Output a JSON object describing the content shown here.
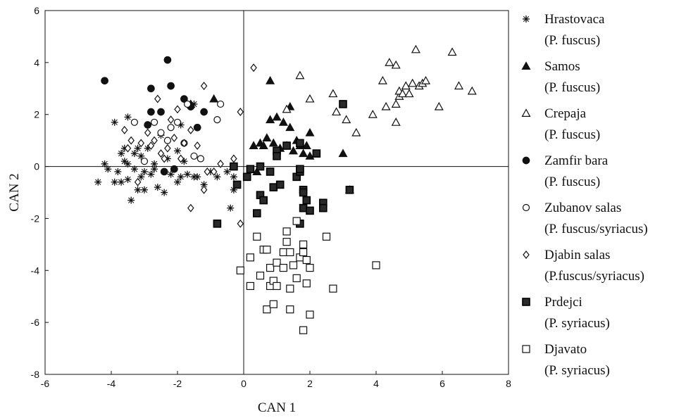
{
  "chart_data": {
    "type": "scatter",
    "title": "",
    "xlabel": "CAN 1",
    "ylabel": "CAN 2",
    "xlim": [
      -6,
      8
    ],
    "ylim": [
      -8,
      6
    ],
    "xticks": [
      -6,
      -4,
      -2,
      0,
      2,
      4,
      6,
      8
    ],
    "yticks": [
      -8,
      -6,
      -4,
      -2,
      0,
      2,
      4,
      6
    ],
    "xtick_labels": [
      "-6",
      "-4",
      "-2",
      "0",
      "2",
      "4",
      "6",
      "8"
    ],
    "ytick_labels": [
      "-8",
      "-6",
      "-4",
      "-2",
      "0",
      "2",
      "4",
      "6"
    ],
    "reference_lines": {
      "x": 0,
      "y": 0
    },
    "grid": false,
    "legend_position": "right",
    "series": [
      {
        "name": "Hrastovaca",
        "species": "(P. fuscus)",
        "marker": "asterisk",
        "color": "#111111",
        "points": [
          [
            -4.4,
            -0.6
          ],
          [
            -4.2,
            0.1
          ],
          [
            -4.1,
            -0.1
          ],
          [
            -3.9,
            1.7
          ],
          [
            -3.9,
            -0.6
          ],
          [
            -3.8,
            -0.2
          ],
          [
            -3.7,
            0.5
          ],
          [
            -3.7,
            -0.6
          ],
          [
            -3.6,
            0.7
          ],
          [
            -3.6,
            0.2
          ],
          [
            -3.5,
            1.9
          ],
          [
            -3.5,
            -0.5
          ],
          [
            -3.5,
            0.1
          ],
          [
            -3.4,
            -1.3
          ],
          [
            -3.3,
            0.5
          ],
          [
            -3.3,
            -0.1
          ],
          [
            -3.2,
            0.7
          ],
          [
            -3.2,
            -0.9
          ],
          [
            -3.1,
            0.4
          ],
          [
            -3.1,
            -0.4
          ],
          [
            -3.0,
            -0.2
          ],
          [
            -3.0,
            -0.9
          ],
          [
            -2.9,
            0.7
          ],
          [
            -2.8,
            -0.3
          ],
          [
            -2.7,
            0.1
          ],
          [
            -2.7,
            -0.1
          ],
          [
            -2.6,
            -0.8
          ],
          [
            -2.5,
            1.2
          ],
          [
            -2.4,
            -1.0
          ],
          [
            -2.3,
            0.3
          ],
          [
            -2.2,
            -0.3
          ],
          [
            -2.0,
            0.6
          ],
          [
            -2.0,
            -0.6
          ],
          [
            -1.9,
            1.6
          ],
          [
            -1.9,
            -0.4
          ],
          [
            -1.8,
            0.2
          ],
          [
            -1.7,
            -0.3
          ],
          [
            -1.5,
            -0.4
          ],
          [
            -1.5,
            2.4
          ],
          [
            -1.4,
            -0.4
          ],
          [
            -1.2,
            -0.7
          ],
          [
            -1.0,
            -0.2
          ],
          [
            -0.8,
            -0.4
          ],
          [
            -0.5,
            -0.2
          ],
          [
            -0.4,
            -1.6
          ],
          [
            -0.3,
            -0.4
          ],
          [
            -0.3,
            -0.9
          ]
        ]
      },
      {
        "name": "Samos",
        "species": "(P. fuscus)",
        "marker": "triangle-filled",
        "color": "#111111",
        "points": [
          [
            0.3,
            0.8
          ],
          [
            0.4,
            -0.2
          ],
          [
            0.5,
            0.9
          ],
          [
            0.6,
            0.8
          ],
          [
            0.7,
            1.1
          ],
          [
            0.8,
            1.8
          ],
          [
            0.8,
            3.3
          ],
          [
            0.9,
            0.9
          ],
          [
            1.0,
            1.9
          ],
          [
            1.1,
            0.7
          ],
          [
            1.2,
            1.7
          ],
          [
            1.3,
            0.8
          ],
          [
            1.4,
            1.5
          ],
          [
            1.4,
            2.3
          ],
          [
            1.5,
            0.6
          ],
          [
            1.6,
            1.0
          ],
          [
            1.7,
            0.8
          ],
          [
            1.8,
            0.5
          ],
          [
            1.9,
            0.8
          ],
          [
            2.0,
            1.3
          ],
          [
            2.0,
            0.4
          ],
          [
            3.0,
            0.5
          ],
          [
            3.2,
            -0.9
          ],
          [
            -0.9,
            2.6
          ],
          [
            -1.6,
            2.4
          ]
        ]
      },
      {
        "name": "Crepaja",
        "species": "(P. fuscus)",
        "marker": "triangle-open",
        "color": "#111111",
        "points": [
          [
            1.7,
            3.5
          ],
          [
            2.0,
            2.6
          ],
          [
            2.7,
            2.8
          ],
          [
            2.8,
            2.1
          ],
          [
            3.1,
            1.8
          ],
          [
            3.4,
            1.3
          ],
          [
            3.9,
            2.0
          ],
          [
            4.2,
            3.3
          ],
          [
            4.3,
            2.3
          ],
          [
            4.4,
            4.0
          ],
          [
            4.6,
            2.4
          ],
          [
            4.6,
            3.9
          ],
          [
            4.7,
            2.7
          ],
          [
            4.7,
            2.9
          ],
          [
            4.8,
            2.8
          ],
          [
            4.9,
            3.1
          ],
          [
            5.0,
            2.8
          ],
          [
            5.1,
            3.2
          ],
          [
            5.2,
            4.5
          ],
          [
            5.3,
            3.1
          ],
          [
            5.4,
            3.2
          ],
          [
            5.5,
            3.3
          ],
          [
            5.9,
            2.3
          ],
          [
            6.3,
            4.4
          ],
          [
            6.5,
            3.1
          ],
          [
            6.9,
            2.9
          ],
          [
            4.6,
            1.7
          ],
          [
            1.3,
            2.2
          ]
        ]
      },
      {
        "name": "Zamfir bara",
        "species": "(P. fuscus)",
        "marker": "circle-filled",
        "color": "#111111",
        "points": [
          [
            -4.2,
            3.3
          ],
          [
            -2.9,
            1.6
          ],
          [
            -2.8,
            3.0
          ],
          [
            -2.8,
            2.1
          ],
          [
            -2.5,
            2.1
          ],
          [
            -2.4,
            -0.2
          ],
          [
            -2.3,
            4.1
          ],
          [
            -2.2,
            3.1
          ],
          [
            -2.1,
            -0.1
          ],
          [
            -1.8,
            2.6
          ],
          [
            -1.6,
            2.3
          ],
          [
            -1.4,
            1.5
          ],
          [
            -1.2,
            2.1
          ]
        ]
      },
      {
        "name": "Zubanov salas",
        "species": "(P. fuscus/syriacus)",
        "marker": "circle-open",
        "color": "#111111",
        "points": [
          [
            -3.3,
            1.7
          ],
          [
            -3.0,
            0.2
          ],
          [
            -2.7,
            1.7
          ],
          [
            -2.5,
            1.3
          ],
          [
            -2.3,
            1.0
          ],
          [
            -2.2,
            1.5
          ],
          [
            -2.0,
            1.7
          ],
          [
            -1.8,
            0.9
          ],
          [
            -1.7,
            2.4
          ],
          [
            -1.5,
            0.4
          ],
          [
            -1.3,
            0.3
          ],
          [
            -0.7,
            2.4
          ],
          [
            -0.8,
            1.8
          ]
        ]
      },
      {
        "name": "Djabin salas",
        "species": "(P.fuscus/syriacus)",
        "marker": "diamond-open",
        "color": "#111111",
        "points": [
          [
            -3.6,
            1.4
          ],
          [
            -3.5,
            0.7
          ],
          [
            -3.4,
            1.0
          ],
          [
            -3.2,
            -0.6
          ],
          [
            -3.1,
            0.9
          ],
          [
            -2.9,
            1.3
          ],
          [
            -2.8,
            0.8
          ],
          [
            -2.7,
            1.0
          ],
          [
            -2.6,
            2.6
          ],
          [
            -2.5,
            0.5
          ],
          [
            -2.4,
            0.3
          ],
          [
            -2.3,
            0.7
          ],
          [
            -2.2,
            1.8
          ],
          [
            -2.1,
            1.1
          ],
          [
            -2.0,
            2.2
          ],
          [
            -1.9,
            0.3
          ],
          [
            -1.8,
            0.9
          ],
          [
            -1.6,
            1.4
          ],
          [
            -1.6,
            -1.6
          ],
          [
            -1.4,
            0.8
          ],
          [
            -1.2,
            3.1
          ],
          [
            -1.1,
            -0.2
          ],
          [
            -0.9,
            -0.2
          ],
          [
            -0.7,
            0.1
          ],
          [
            -0.3,
            0.3
          ],
          [
            -0.1,
            2.1
          ],
          [
            -0.1,
            -2.2
          ],
          [
            0.3,
            3.8
          ],
          [
            -1.2,
            -0.9
          ]
        ]
      },
      {
        "name": "Prdejci",
        "species": "(P. syriacus)",
        "marker": "square-filled",
        "color": "#111111",
        "points": [
          [
            -0.8,
            -2.2
          ],
          [
            -0.3,
            0.0
          ],
          [
            -0.2,
            -0.7
          ],
          [
            0.2,
            -0.1
          ],
          [
            0.4,
            -1.8
          ],
          [
            0.5,
            0.0
          ],
          [
            0.5,
            -1.1
          ],
          [
            0.6,
            -1.3
          ],
          [
            0.8,
            -0.2
          ],
          [
            0.9,
            -0.8
          ],
          [
            1.0,
            0.6
          ],
          [
            1.0,
            0.4
          ],
          [
            1.1,
            -0.7
          ],
          [
            1.3,
            0.8
          ],
          [
            1.6,
            -0.4
          ],
          [
            1.7,
            -0.2
          ],
          [
            1.7,
            -0.1
          ],
          [
            1.8,
            -0.9
          ],
          [
            1.8,
            -1.0
          ],
          [
            1.8,
            -1.6
          ],
          [
            1.9,
            -1.3
          ],
          [
            2.0,
            -1.7
          ],
          [
            2.2,
            0.5
          ],
          [
            2.4,
            -1.4
          ],
          [
            2.4,
            -1.6
          ],
          [
            3.0,
            2.4
          ],
          [
            3.2,
            -0.9
          ],
          [
            1.7,
            -2.2
          ],
          [
            1.7,
            0.9
          ],
          [
            0.1,
            -0.4
          ]
        ]
      },
      {
        "name": "Djavato",
        "species": "(P. syriacus)",
        "marker": "square-open",
        "color": "#111111",
        "points": [
          [
            -0.1,
            -4.0
          ],
          [
            0.2,
            -3.5
          ],
          [
            0.2,
            -4.6
          ],
          [
            0.4,
            -2.7
          ],
          [
            0.5,
            -4.2
          ],
          [
            0.6,
            -3.2
          ],
          [
            0.7,
            -5.5
          ],
          [
            0.8,
            -3.9
          ],
          [
            0.8,
            -4.6
          ],
          [
            0.9,
            -4.4
          ],
          [
            0.9,
            -5.3
          ],
          [
            1.0,
            -3.7
          ],
          [
            1.0,
            -4.6
          ],
          [
            1.2,
            -3.3
          ],
          [
            1.3,
            -2.5
          ],
          [
            1.3,
            -2.9
          ],
          [
            1.4,
            -3.3
          ],
          [
            1.4,
            -4.7
          ],
          [
            1.4,
            -5.5
          ],
          [
            1.5,
            -3.8
          ],
          [
            1.6,
            -2.1
          ],
          [
            1.6,
            -4.3
          ],
          [
            1.7,
            -3.5
          ],
          [
            1.8,
            -3.0
          ],
          [
            1.8,
            -3.3
          ],
          [
            1.8,
            -6.3
          ],
          [
            1.9,
            -3.6
          ],
          [
            1.9,
            -4.5
          ],
          [
            2.0,
            -3.9
          ],
          [
            2.0,
            -5.7
          ],
          [
            2.5,
            -2.7
          ],
          [
            2.7,
            -4.7
          ],
          [
            4.0,
            -3.8
          ],
          [
            0.7,
            -3.2
          ],
          [
            1.2,
            -3.9
          ]
        ]
      }
    ]
  }
}
